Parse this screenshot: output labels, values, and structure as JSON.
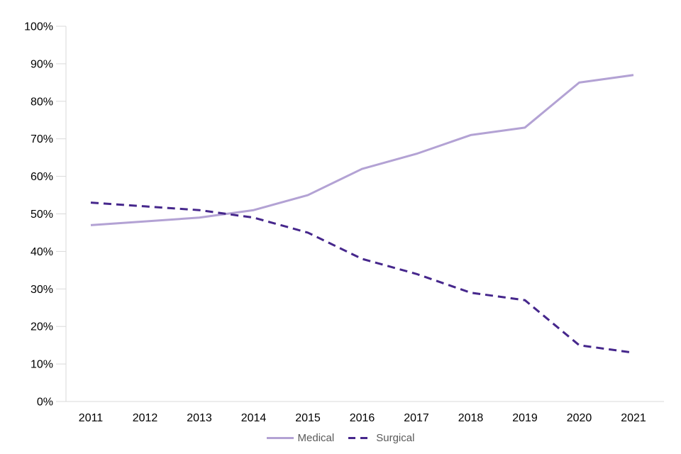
{
  "chart_data": {
    "type": "line",
    "categories": [
      "2011",
      "2012",
      "2013",
      "2014",
      "2015",
      "2016",
      "2017",
      "2018",
      "2019",
      "2020",
      "2021"
    ],
    "series": [
      {
        "name": "Medical",
        "style": "solid",
        "color": "#B3A2D4",
        "values": [
          47,
          48,
          49,
          51,
          55,
          62,
          66,
          71,
          73,
          85,
          87
        ]
      },
      {
        "name": "Surgical",
        "style": "dashed",
        "color": "#46278C",
        "values": [
          53,
          52,
          51,
          49,
          45,
          38,
          34,
          29,
          27,
          15,
          13
        ]
      }
    ],
    "title": "",
    "xlabel": "",
    "ylabel": "",
    "ylim": [
      0,
      100
    ],
    "ytick_labels": [
      "0%",
      "10%",
      "20%",
      "30%",
      "40%",
      "50%",
      "60%",
      "70%",
      "80%",
      "90%",
      "100%"
    ],
    "grid": false,
    "legend_position": "bottom"
  },
  "colors": {
    "axis_line": "#D9D9D9",
    "axis_text": "#000000",
    "legend_text": "#595959"
  }
}
